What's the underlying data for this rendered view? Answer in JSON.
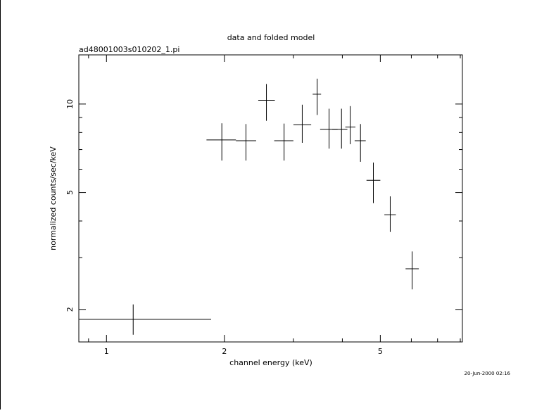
{
  "chart_data": {
    "type": "scatter",
    "title": "data and folded model",
    "subtitle": "ad48001003s010202_1.pi",
    "xlabel": "channel energy (keV)",
    "ylabel": "normalized counts/sec/keV",
    "xscale": "log",
    "yscale": "log",
    "xlim": [
      0.85,
      8.1
    ],
    "ylim": [
      1.55,
      14.7
    ],
    "x_ticks": [
      1,
      2,
      5
    ],
    "x_tick_labels": [
      "1",
      "2",
      "5"
    ],
    "y_ticks": [
      2,
      5,
      10
    ],
    "y_tick_labels": [
      "2",
      "5",
      "10"
    ],
    "grid": false,
    "legend": "none",
    "footer": "20-Jun-2000 02:16",
    "points": [
      {
        "x": 1.17,
        "xlo": 0.85,
        "xhi": 1.85,
        "y": 1.85,
        "ylo": 1.64,
        "yhi": 2.08
      },
      {
        "x": 1.97,
        "xlo": 1.8,
        "xhi": 2.14,
        "y": 7.55,
        "ylo": 6.42,
        "yhi": 8.6
      },
      {
        "x": 2.27,
        "xlo": 2.14,
        "xhi": 2.41,
        "y": 7.5,
        "ylo": 6.42,
        "yhi": 8.55
      },
      {
        "x": 2.56,
        "xlo": 2.44,
        "xhi": 2.69,
        "y": 10.3,
        "ylo": 8.77,
        "yhi": 11.7
      },
      {
        "x": 2.84,
        "xlo": 2.68,
        "xhi": 3.0,
        "y": 7.5,
        "ylo": 6.42,
        "yhi": 8.58
      },
      {
        "x": 3.16,
        "xlo": 3.0,
        "xhi": 3.33,
        "y": 8.5,
        "ylo": 7.38,
        "yhi": 9.95
      },
      {
        "x": 3.45,
        "xlo": 3.36,
        "xhi": 3.53,
        "y": 10.8,
        "ylo": 9.18,
        "yhi": 12.2
      },
      {
        "x": 3.7,
        "xlo": 3.51,
        "xhi": 3.89,
        "y": 8.2,
        "ylo": 7.05,
        "yhi": 9.64
      },
      {
        "x": 3.98,
        "xlo": 3.77,
        "xhi": 4.12,
        "y": 8.2,
        "ylo": 7.05,
        "yhi": 9.64
      },
      {
        "x": 4.19,
        "xlo": 4.07,
        "xhi": 4.32,
        "y": 8.35,
        "ylo": 7.3,
        "yhi": 9.84
      },
      {
        "x": 4.45,
        "xlo": 4.3,
        "xhi": 4.59,
        "y": 7.5,
        "ylo": 6.36,
        "yhi": 8.55
      },
      {
        "x": 4.8,
        "xlo": 4.61,
        "xhi": 5.0,
        "y": 5.5,
        "ylo": 4.6,
        "yhi": 6.32
      },
      {
        "x": 5.3,
        "xlo": 5.12,
        "xhi": 5.48,
        "y": 4.2,
        "ylo": 3.67,
        "yhi": 4.85
      },
      {
        "x": 6.03,
        "xlo": 5.8,
        "xhi": 6.27,
        "y": 2.75,
        "ylo": 2.34,
        "yhi": 3.15
      }
    ]
  }
}
